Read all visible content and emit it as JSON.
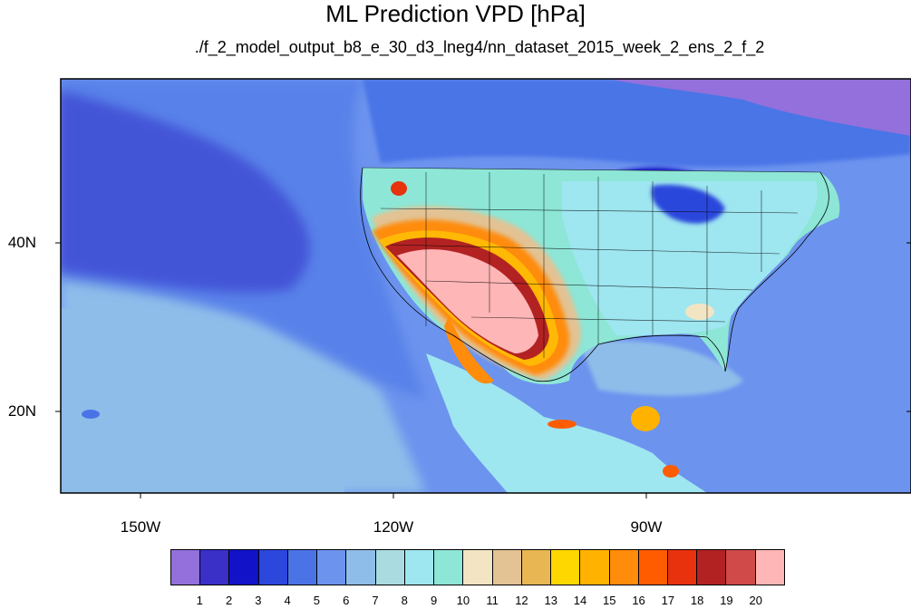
{
  "title": "ML Prediction VPD [hPa]",
  "subtitle": "./f_2_model_output_b8_e_30_d3_lneg4/nn_dataset_2015_week_2_ens_2_f_2",
  "axes": {
    "lat_labels": [
      "40N",
      "20N"
    ],
    "lon_labels": [
      "150W",
      "120W",
      "90W"
    ]
  },
  "colorbar": {
    "labels": [
      "1",
      "2",
      "3",
      "4",
      "5",
      "6",
      "7",
      "8",
      "9",
      "10",
      "11",
      "12",
      "13",
      "14",
      "15",
      "16",
      "17",
      "18",
      "19",
      "20"
    ],
    "colors": [
      "#9370db",
      "#3a2fc6",
      "#1212c8",
      "#2b47dc",
      "#4a74e6",
      "#6c93ee",
      "#8fbdea",
      "#a9dbe0",
      "#9ee6f0",
      "#8de6d6",
      "#f3e4c4",
      "#e3c293",
      "#e8b653",
      "#ffd700",
      "#ffb300",
      "#ff8c0a",
      "#ff5c00",
      "#e8320e",
      "#b22222",
      "#d04a4a",
      "#ffb6b6"
    ]
  },
  "map_colors": {
    "ocean_deep": "#3c2fc6",
    "ocean_mid": "#4a74e6",
    "ocean_light": "#6c93ee",
    "ocean_pale": "#8fbdea",
    "coast": "#a9dbe0",
    "land_cyan": "#9ee6f0",
    "land_teal": "#8de6d6",
    "desert_pink": "#ffb6b6",
    "hot_red": "#d04a4a",
    "hot_orange": "#ff8c0a",
    "hot_yellow": "#ffd700",
    "tan": "#e3c293",
    "purple": "#9370db"
  }
}
